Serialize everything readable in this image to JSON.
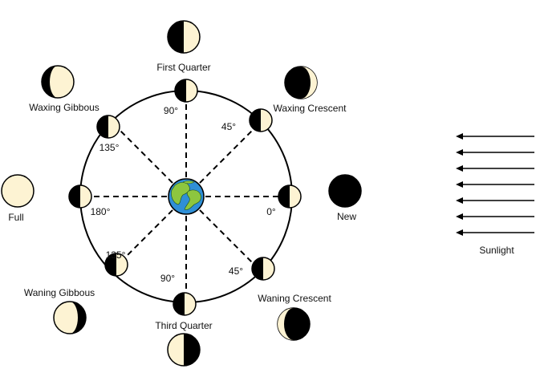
{
  "colors": {
    "moon_lit": "#fdf3d3",
    "moon_dark": "#000000",
    "outline": "#000000",
    "earth_ocean": "#2f8fd6",
    "earth_land": "#8dc63f"
  },
  "phase_labels": {
    "first_quarter": "First Quarter",
    "waxing_gibbous": "Waxing Gibbous",
    "waxing_crescent": "Waxing Crescent",
    "full": "Full",
    "new": "New",
    "waning_gibbous": "Waning Gibbous",
    "waning_crescent": "Waning Crescent",
    "third_quarter": "Third Quarter"
  },
  "angle_labels": {
    "top": "90°",
    "upper_right": "45°",
    "upper_left": "135°",
    "left": "180°",
    "right": "0°",
    "lower_left": "135°",
    "lower_bottom": "90°",
    "lower_right": "45°"
  },
  "sunlight": {
    "label": "Sunlight",
    "arrow_count": 7
  }
}
